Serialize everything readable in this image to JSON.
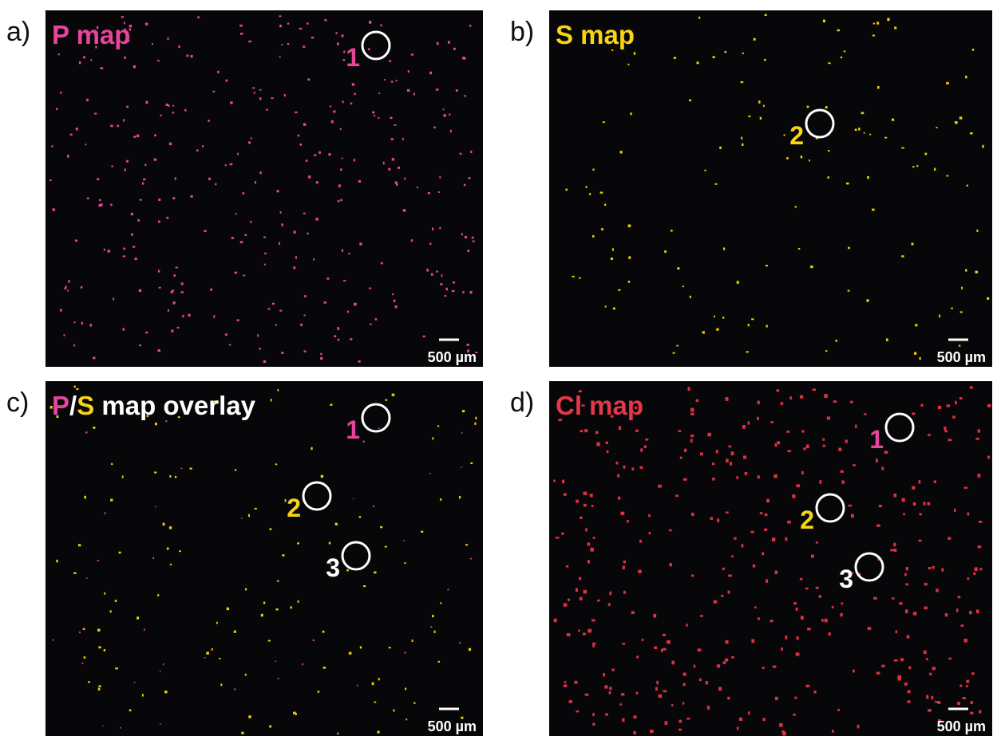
{
  "panels": [
    {
      "letter": "a)",
      "title": [
        {
          "text": "P map",
          "color": "#e8449c"
        }
      ],
      "markers": [
        {
          "label": "1",
          "color": "#e8449c"
        }
      ],
      "scale_bar": "500 µm"
    },
    {
      "letter": "b)",
      "title": [
        {
          "text": "S map",
          "color": "#f7d414"
        }
      ],
      "markers": [
        {
          "label": "2",
          "color": "#f7d414"
        }
      ],
      "scale_bar": "500 µm"
    },
    {
      "letter": "c)",
      "title": [
        {
          "text": "P",
          "color": "#e8449c"
        },
        {
          "text": "/",
          "color": "#ffffff"
        },
        {
          "text": "S",
          "color": "#f7d414"
        },
        {
          "text": " map overlay",
          "color": "#ffffff"
        }
      ],
      "markers": [
        {
          "label": "1",
          "color": "#e8449c"
        },
        {
          "label": "2",
          "color": "#f7d414"
        },
        {
          "label": "3",
          "color": "#ffffff"
        }
      ],
      "scale_bar": "500 µm"
    },
    {
      "letter": "d)",
      "title": [
        {
          "text": "Cl map",
          "color": "#e03a48"
        }
      ],
      "markers": [
        {
          "label": "1",
          "color": "#e8449c"
        },
        {
          "label": "2",
          "color": "#f7d414"
        },
        {
          "label": "3",
          "color": "#ffffff"
        }
      ],
      "scale_bar": "500 µm"
    }
  ]
}
